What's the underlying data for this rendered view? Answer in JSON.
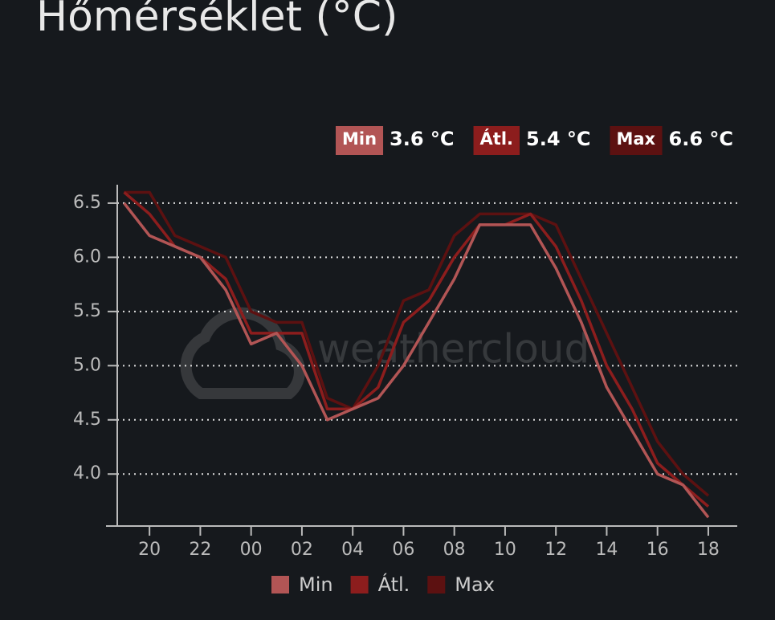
{
  "chart_data": {
    "type": "line",
    "title": "Hőmérséklet (°C)",
    "watermark": "weathercloud",
    "stats": [
      {
        "name": "Min",
        "value": 3.6,
        "value_label": "3.6 °C",
        "color": "#b25555"
      },
      {
        "name": "Átl.",
        "value": 5.4,
        "value_label": "5.4 °C",
        "color": "#8c1d1d"
      },
      {
        "name": "Max",
        "value": 6.6,
        "value_label": "6.6 °C",
        "color": "#5c1111"
      }
    ],
    "x": [
      19,
      20,
      21,
      22,
      23,
      24,
      25,
      26,
      27,
      28,
      29,
      30,
      31,
      32,
      33,
      34,
      35,
      36,
      37,
      38,
      39,
      40,
      41,
      42
    ],
    "xlim": [
      18.73,
      43.14
    ],
    "xticks": [
      {
        "value": 20,
        "label": "20"
      },
      {
        "value": 22,
        "label": "22"
      },
      {
        "value": 24,
        "label": "00"
      },
      {
        "value": 26,
        "label": "02"
      },
      {
        "value": 28,
        "label": "04"
      },
      {
        "value": 30,
        "label": "06"
      },
      {
        "value": 32,
        "label": "08"
      },
      {
        "value": 34,
        "label": "10"
      },
      {
        "value": 36,
        "label": "12"
      },
      {
        "value": 38,
        "label": "14"
      },
      {
        "value": 40,
        "label": "16"
      },
      {
        "value": 42,
        "label": "18"
      }
    ],
    "ylim": [
      3.52,
      6.67
    ],
    "yticks": [
      {
        "value": 4,
        "label": "4.0"
      },
      {
        "value": 4.5,
        "label": "4.5"
      },
      {
        "value": 5,
        "label": "5.0"
      },
      {
        "value": 5.5,
        "label": "5.5"
      },
      {
        "value": 6,
        "label": "6.0"
      },
      {
        "value": 6.5,
        "label": "6.5"
      }
    ],
    "grid": true,
    "series": [
      {
        "name": "Min",
        "color": "#b25555",
        "values": [
          6.5,
          6.2,
          6.1,
          6.0,
          5.7,
          5.2,
          5.3,
          5.0,
          4.5,
          4.6,
          4.7,
          5.0,
          5.4,
          5.8,
          6.3,
          6.3,
          6.3,
          5.9,
          5.4,
          4.8,
          4.4,
          4.0,
          3.9,
          3.6
        ]
      },
      {
        "name": "Átl.",
        "color": "#8c1d1d",
        "values": [
          6.6,
          6.4,
          6.1,
          6.0,
          5.8,
          5.3,
          5.3,
          5.3,
          4.6,
          4.6,
          4.8,
          5.4,
          5.6,
          6.0,
          6.3,
          6.3,
          6.4,
          6.1,
          5.6,
          5.0,
          4.6,
          4.1,
          3.9,
          3.7
        ]
      },
      {
        "name": "Max",
        "color": "#5c1111",
        "values": [
          6.6,
          6.6,
          6.2,
          6.1,
          6.0,
          5.5,
          5.4,
          5.4,
          4.7,
          4.6,
          5.0,
          5.6,
          5.7,
          6.2,
          6.4,
          6.4,
          6.4,
          6.3,
          5.8,
          5.3,
          4.8,
          4.3,
          4.0,
          3.8
        ]
      }
    ]
  }
}
